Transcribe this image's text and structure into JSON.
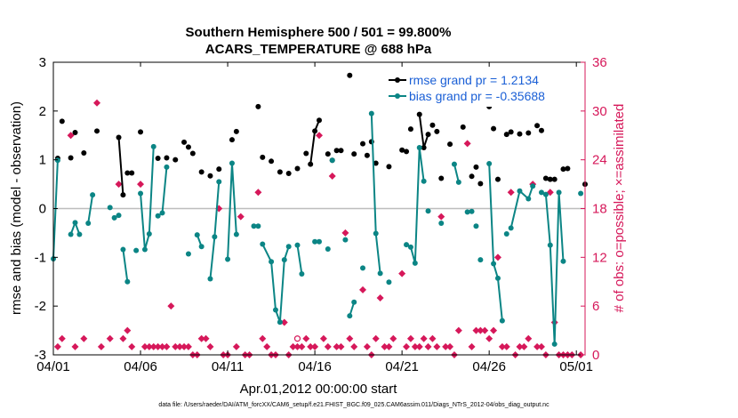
{
  "chart_data": {
    "type": "line",
    "title": "Southern Hemisphere 500 / 501 = 99.800%",
    "subtitle": "ACARS_TEMPERATURE @ 688 hPa",
    "xlabel": "Apr.01,2012 00:00:00 start",
    "ylabel": "rmse and bias (model - observation)",
    "y2label": "# of obs: o=possible; ×=assimilated",
    "footer": "data file: /Users/raeder/DAI/ATM_forcXX/CAM6_setup/f.e21.FHIST_BGC.f09_025.CAM6assim.011/Diags_NTrS_2012-04/obs_diag_output.nc",
    "xlim": [
      0,
      30.5
    ],
    "ylim": [
      -3,
      3
    ],
    "y2lim": [
      0,
      36
    ],
    "x_ticks": [
      0,
      5,
      10,
      15,
      20,
      25,
      30
    ],
    "x_tick_labels": [
      "04/01",
      "04/06",
      "04/11",
      "04/16",
      "04/21",
      "04/26",
      "05/01"
    ],
    "y_ticks": [
      -3,
      -2,
      -1,
      0,
      1,
      2,
      3
    ],
    "y_tick_labels": [
      "-3",
      "-2",
      "-1",
      "0",
      "1",
      "2",
      "3"
    ],
    "y2_ticks": [
      0,
      6,
      12,
      18,
      24,
      30,
      36
    ],
    "y2_tick_labels": [
      "0",
      "6",
      "12",
      "18",
      "24",
      "30",
      "36"
    ],
    "colors": {
      "rmse": "#000000",
      "bias": "#0b8585",
      "obs": "#d6185a",
      "zero_line": "#bdbdbd",
      "legend_text": "#1a5fd6"
    },
    "series": [
      {
        "name": "rmse grand pr = 1.2134",
        "key": "rmse",
        "x": [
          0.25,
          0.5,
          1.0,
          1.25,
          1.75,
          2.5,
          3.75,
          4.0,
          4.25,
          4.5,
          5.0,
          6.0,
          6.5,
          7.0,
          7.5,
          7.75,
          8.0,
          8.5,
          9.0,
          9.5,
          10.25,
          10.5,
          11.75,
          12.0,
          12.5,
          13.0,
          13.5,
          14.0,
          14.5,
          14.75,
          15.0,
          15.25,
          15.75,
          16.0,
          16.25,
          16.5,
          17.0,
          17.25,
          17.75,
          18.0,
          18.25,
          18.5,
          19.25,
          20.0,
          20.25,
          20.5,
          21.0,
          21.25,
          21.5,
          21.75,
          22.0,
          22.25,
          22.75,
          23.5,
          24.0,
          24.25,
          24.5,
          25.0,
          25.25,
          25.5,
          26.0,
          26.25,
          26.75,
          27.25,
          27.75,
          28.0,
          28.25,
          28.5,
          28.75,
          29.25,
          29.5,
          30.5
        ],
        "y": [
          1.03,
          1.79,
          1.04,
          1.56,
          1.14,
          1.59,
          1.46,
          0.28,
          0.73,
          0.73,
          1.57,
          1.03,
          1.04,
          1.0,
          1.36,
          1.26,
          1.13,
          0.75,
          0.67,
          0.81,
          1.41,
          1.58,
          2.09,
          1.05,
          0.97,
          0.75,
          0.72,
          0.82,
          1.13,
          0.91,
          1.59,
          1.81,
          1.12,
          0.99,
          1.19,
          1.19,
          2.73,
          1.12,
          1.33,
          1.09,
          1.37,
          0.93,
          0.86,
          1.2,
          1.17,
          1.63,
          1.93,
          1.25,
          1.52,
          1.71,
          1.58,
          0.62,
          1.32,
          1.67,
          0.66,
          0.85,
          0.51,
          2.09,
          1.64,
          0.6,
          1.52,
          1.57,
          1.53,
          1.55,
          1.7,
          1.6,
          0.62,
          0.6,
          0.6,
          0.81,
          0.82,
          0.5
        ],
        "segments": [
          [
            3.75,
            4.0
          ],
          [
            14.75,
            15.0,
            15.25
          ],
          [
            21.0,
            21.25,
            21.5
          ],
          [
            28.25,
            28.5
          ]
        ]
      },
      {
        "name": "bias grand pr = -0.35688",
        "key": "bias",
        "x": [
          0,
          0.25,
          1.0,
          1.25,
          1.5,
          2.0,
          2.25,
          3.25,
          3.5,
          3.75,
          4.0,
          4.25,
          4.75,
          5.0,
          5.25,
          5.5,
          5.75,
          6.0,
          6.25,
          6.5,
          7.75,
          8.25,
          8.5,
          9.0,
          9.25,
          9.5,
          10.0,
          10.25,
          10.5,
          11.5,
          11.75,
          12.0,
          12.5,
          12.75,
          13.0,
          13.25,
          13.5,
          14.0,
          14.25,
          15.0,
          15.25,
          15.75,
          16.0,
          16.75,
          17.0,
          17.25,
          17.75,
          18.25,
          18.5,
          18.75,
          19.25,
          20.25,
          20.5,
          20.75,
          21.0,
          21.25,
          21.5,
          22.25,
          23.0,
          23.25,
          23.75,
          24.0,
          24.25,
          24.5,
          25.0,
          25.25,
          25.5,
          25.75,
          26.0,
          26.25,
          26.75,
          27.25,
          27.5,
          28.0,
          28.25,
          28.5,
          28.75,
          29.0,
          29.25,
          30.25
        ],
        "y": [
          -1.03,
          0.99,
          -0.53,
          -0.29,
          -0.53,
          -0.3,
          0.28,
          0.02,
          -0.19,
          -0.14,
          -0.84,
          -1.5,
          -0.86,
          0.31,
          -0.84,
          -0.52,
          1.27,
          -0.15,
          -0.09,
          0.85,
          -0.93,
          -0.54,
          -0.78,
          -1.44,
          -0.58,
          0.55,
          -1.04,
          0.93,
          -0.53,
          -0.36,
          -0.36,
          -0.73,
          -1.09,
          -2.08,
          -2.33,
          -1.05,
          -0.78,
          -0.75,
          -1.34,
          -0.68,
          -0.68,
          -0.83,
          0.99,
          -0.64,
          -2.2,
          -1.92,
          -1.22,
          1.95,
          -0.51,
          -1.33,
          -1.51,
          -0.74,
          -0.79,
          -1.12,
          1.25,
          0.56,
          -0.05,
          -0.3,
          0.91,
          0.54,
          -0.07,
          -0.06,
          -0.36,
          -1.05,
          0.92,
          -1.13,
          -1.43,
          -2.3,
          -0.52,
          -0.4,
          0.36,
          0.2,
          0.46,
          0.33,
          0.29,
          -0.75,
          -2.78,
          0.33,
          -1.08,
          0.31
        ],
        "segments": [
          [
            0,
            0.25
          ],
          [
            1.0,
            1.25,
            1.5
          ],
          [
            2.0,
            2.25
          ],
          [
            3.5,
            3.75
          ],
          [
            4.0,
            4.25
          ],
          [
            5.0,
            5.25,
            5.5,
            5.75
          ],
          [
            6.0,
            6.25,
            6.5
          ],
          [
            8.25,
            8.5
          ],
          [
            9.0,
            9.25,
            9.5
          ],
          [
            10.0,
            10.25,
            10.5
          ],
          [
            12.0,
            12.5,
            12.75,
            13.0,
            13.25,
            13.5
          ],
          [
            14.0,
            14.25
          ],
          [
            15.0,
            15.25
          ],
          [
            17.0,
            17.25
          ],
          [
            18.0,
            18.25,
            18.5,
            18.75
          ],
          [
            20.25,
            20.5,
            20.75,
            21.0,
            21.25
          ],
          [
            23.0,
            23.25
          ],
          [
            25.0,
            25.25,
            25.5,
            25.75
          ],
          [
            26.25,
            26.75,
            27.25,
            27.5
          ],
          [
            28.0,
            28.25,
            28.5,
            28.75,
            29.0,
            29.25
          ]
        ]
      }
    ],
    "obs_possible": [
      {
        "x": 0.25,
        "y": 1
      },
      {
        "x": 0.5,
        "y": 2
      },
      {
        "x": 1.0,
        "y": 27
      },
      {
        "x": 1.25,
        "y": 1
      },
      {
        "x": 1.75,
        "y": 2
      },
      {
        "x": 2.5,
        "y": 31
      },
      {
        "x": 2.75,
        "y": 1
      },
      {
        "x": 3.25,
        "y": 2
      },
      {
        "x": 3.75,
        "y": 21
      },
      {
        "x": 4.0,
        "y": 2
      },
      {
        "x": 4.25,
        "y": 3
      },
      {
        "x": 4.5,
        "y": 1
      },
      {
        "x": 5.0,
        "y": 21
      },
      {
        "x": 5.25,
        "y": 1
      },
      {
        "x": 5.5,
        "y": 1
      },
      {
        "x": 5.75,
        "y": 1
      },
      {
        "x": 6.0,
        "y": 1
      },
      {
        "x": 6.25,
        "y": 1
      },
      {
        "x": 6.5,
        "y": 1
      },
      {
        "x": 6.75,
        "y": 6
      },
      {
        "x": 7.0,
        "y": 1
      },
      {
        "x": 7.25,
        "y": 1
      },
      {
        "x": 7.5,
        "y": 1
      },
      {
        "x": 7.75,
        "y": 1
      },
      {
        "x": 8.0,
        "y": 0
      },
      {
        "x": 8.25,
        "y": 0
      },
      {
        "x": 8.5,
        "y": 2
      },
      {
        "x": 8.75,
        "y": 2
      },
      {
        "x": 9.0,
        "y": 1
      },
      {
        "x": 9.5,
        "y": 18
      },
      {
        "x": 9.75,
        "y": 0
      },
      {
        "x": 10.0,
        "y": 0
      },
      {
        "x": 10.5,
        "y": 1
      },
      {
        "x": 10.75,
        "y": 17
      },
      {
        "x": 11.0,
        "y": 0
      },
      {
        "x": 11.25,
        "y": 0
      },
      {
        "x": 11.75,
        "y": 20
      },
      {
        "x": 12.0,
        "y": 2
      },
      {
        "x": 12.25,
        "y": 1
      },
      {
        "x": 12.5,
        "y": 0
      },
      {
        "x": 12.75,
        "y": 0
      },
      {
        "x": 13.25,
        "y": 4
      },
      {
        "x": 13.5,
        "y": 0
      },
      {
        "x": 13.75,
        "y": 1
      },
      {
        "x": 14.0,
        "y": 1
      },
      {
        "x": 14.25,
        "y": 1
      },
      {
        "x": 14.5,
        "y": 2
      },
      {
        "x": 14.75,
        "y": 1
      },
      {
        "x": 15.0,
        "y": 1
      },
      {
        "x": 15.25,
        "y": 27
      },
      {
        "x": 15.5,
        "y": 2
      },
      {
        "x": 15.75,
        "y": 1
      },
      {
        "x": 16.0,
        "y": 22
      },
      {
        "x": 16.25,
        "y": 1
      },
      {
        "x": 16.5,
        "y": 1
      },
      {
        "x": 16.75,
        "y": 15
      },
      {
        "x": 17.0,
        "y": 2
      },
      {
        "x": 17.25,
        "y": 1
      },
      {
        "x": 17.75,
        "y": 8
      },
      {
        "x": 18.0,
        "y": 1
      },
      {
        "x": 18.25,
        "y": 0
      },
      {
        "x": 18.5,
        "y": 2
      },
      {
        "x": 18.75,
        "y": 7
      },
      {
        "x": 19.0,
        "y": 1
      },
      {
        "x": 19.25,
        "y": 1
      },
      {
        "x": 19.5,
        "y": 2
      },
      {
        "x": 20.0,
        "y": 10
      },
      {
        "x": 20.25,
        "y": 1
      },
      {
        "x": 20.5,
        "y": 2
      },
      {
        "x": 20.75,
        "y": 1
      },
      {
        "x": 21.0,
        "y": 1
      },
      {
        "x": 21.25,
        "y": 2
      },
      {
        "x": 21.5,
        "y": 1
      },
      {
        "x": 21.75,
        "y": 2
      },
      {
        "x": 22.0,
        "y": 1
      },
      {
        "x": 22.25,
        "y": 17
      },
      {
        "x": 22.5,
        "y": 1
      },
      {
        "x": 22.75,
        "y": 1
      },
      {
        "x": 23.0,
        "y": 0
      },
      {
        "x": 23.25,
        "y": 3
      },
      {
        "x": 23.75,
        "y": 26
      },
      {
        "x": 24.0,
        "y": 1
      },
      {
        "x": 24.25,
        "y": 3
      },
      {
        "x": 24.5,
        "y": 3
      },
      {
        "x": 24.75,
        "y": 3
      },
      {
        "x": 25.0,
        "y": 2
      },
      {
        "x": 25.25,
        "y": 3
      },
      {
        "x": 25.5,
        "y": 12
      },
      {
        "x": 25.75,
        "y": 1
      },
      {
        "x": 26.0,
        "y": 1
      },
      {
        "x": 26.25,
        "y": 20
      },
      {
        "x": 26.5,
        "y": 0
      },
      {
        "x": 26.75,
        "y": 1
      },
      {
        "x": 27.0,
        "y": 1
      },
      {
        "x": 27.25,
        "y": 2
      },
      {
        "x": 27.5,
        "y": 21
      },
      {
        "x": 27.75,
        "y": 1
      },
      {
        "x": 28.0,
        "y": 1
      },
      {
        "x": 28.25,
        "y": 0
      },
      {
        "x": 28.5,
        "y": 20
      },
      {
        "x": 28.75,
        "y": 4
      },
      {
        "x": 29.0,
        "y": 0
      },
      {
        "x": 29.25,
        "y": 0
      },
      {
        "x": 29.5,
        "y": 0
      },
      {
        "x": 29.75,
        "y": 0
      },
      {
        "x": 30.25,
        "y": 0
      }
    ],
    "obs_assimilated_hollow": [
      {
        "x": 14.0,
        "y": 2
      }
    ]
  }
}
